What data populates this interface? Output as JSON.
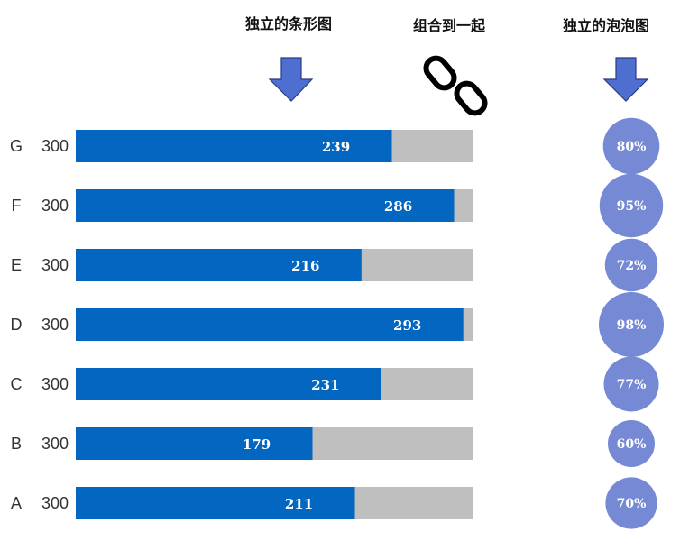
{
  "headers": {
    "bar_chart": "独立的条形图",
    "combine": "组合到一起",
    "bubble_chart": "独立的泡泡图"
  },
  "colors": {
    "bar": "#0366c0",
    "track": "#bfbfbf",
    "bubble": "#7689d5",
    "arrow": "#4f6fd0",
    "arrow_stroke": "#2a3a88"
  },
  "icons": {
    "down_arrow": "down-arrow-icon",
    "chain_link": "chain-link-icon"
  },
  "chart_data": {
    "type": "bar",
    "orientation": "horizontal",
    "categories": [
      "G",
      "F",
      "E",
      "D",
      "C",
      "B",
      "A"
    ],
    "totals": [
      300,
      300,
      300,
      300,
      300,
      300,
      300
    ],
    "values": [
      239,
      286,
      216,
      293,
      231,
      179,
      211
    ],
    "max": 300,
    "bubble_labels": [
      "80%",
      "95%",
      "72%",
      "98%",
      "77%",
      "60%",
      "70%"
    ],
    "bubble_values": [
      0.8,
      0.95,
      0.72,
      0.98,
      0.77,
      0.6,
      0.7
    ]
  }
}
